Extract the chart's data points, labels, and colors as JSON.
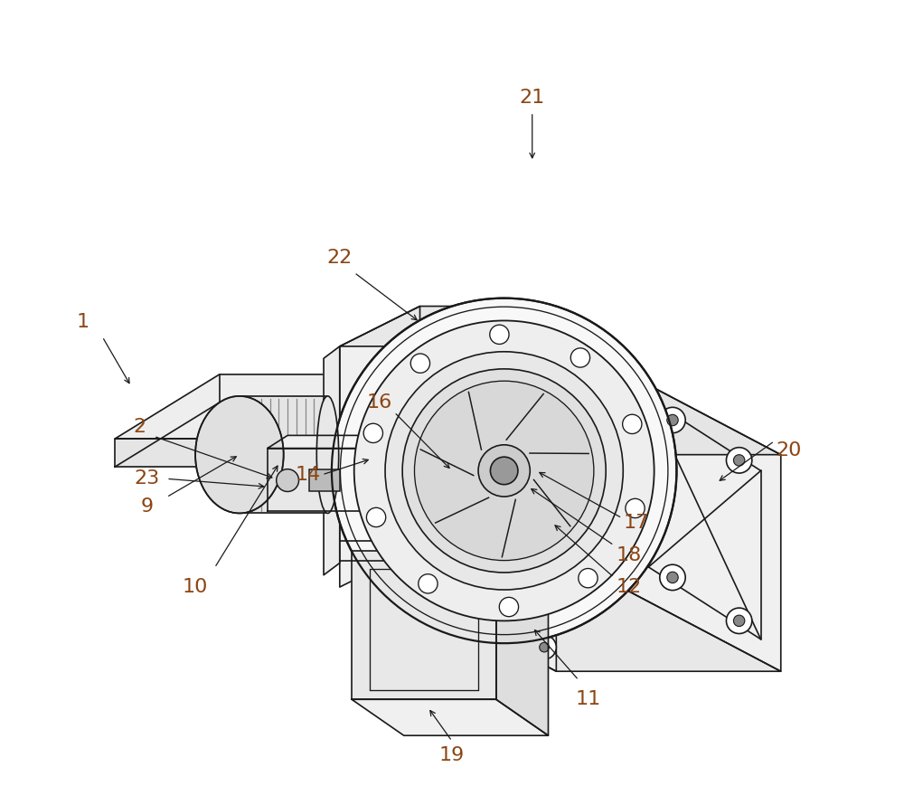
{
  "background_color": "#ffffff",
  "line_color": "#1a1a1a",
  "label_color": "#8B4513",
  "label_fontsize": 16,
  "line_width": 1.2,
  "labels_data": [
    [
      1,
      0.04,
      0.6,
      0.04,
      -0.03,
      0.1,
      0.52
    ],
    [
      2,
      0.11,
      0.47,
      0.03,
      -0.02,
      0.28,
      0.405
    ],
    [
      9,
      0.12,
      0.37,
      0.04,
      0.02,
      0.235,
      0.435
    ],
    [
      10,
      0.18,
      0.27,
      0.04,
      0.04,
      0.285,
      0.425
    ],
    [
      23,
      0.12,
      0.405,
      0.04,
      0.0,
      0.27,
      0.395
    ],
    [
      14,
      0.32,
      0.41,
      0.03,
      0.0,
      0.4,
      0.43
    ],
    [
      16,
      0.41,
      0.5,
      0.03,
      -0.02,
      0.5,
      0.415
    ],
    [
      19,
      0.5,
      0.06,
      0.0,
      0.03,
      0.47,
      0.12
    ],
    [
      11,
      0.67,
      0.13,
      -0.02,
      0.04,
      0.6,
      0.22
    ],
    [
      12,
      0.72,
      0.27,
      -0.03,
      0.02,
      0.625,
      0.35
    ],
    [
      18,
      0.72,
      0.31,
      -0.03,
      0.02,
      0.595,
      0.395
    ],
    [
      17,
      0.73,
      0.35,
      -0.03,
      0.01,
      0.605,
      0.415
    ],
    [
      20,
      0.92,
      0.44,
      -0.03,
      0.02,
      0.83,
      0.4
    ],
    [
      21,
      0.6,
      0.88,
      0.0,
      -0.03,
      0.6,
      0.8
    ],
    [
      22,
      0.36,
      0.68,
      0.03,
      -0.03,
      0.46,
      0.6
    ]
  ]
}
